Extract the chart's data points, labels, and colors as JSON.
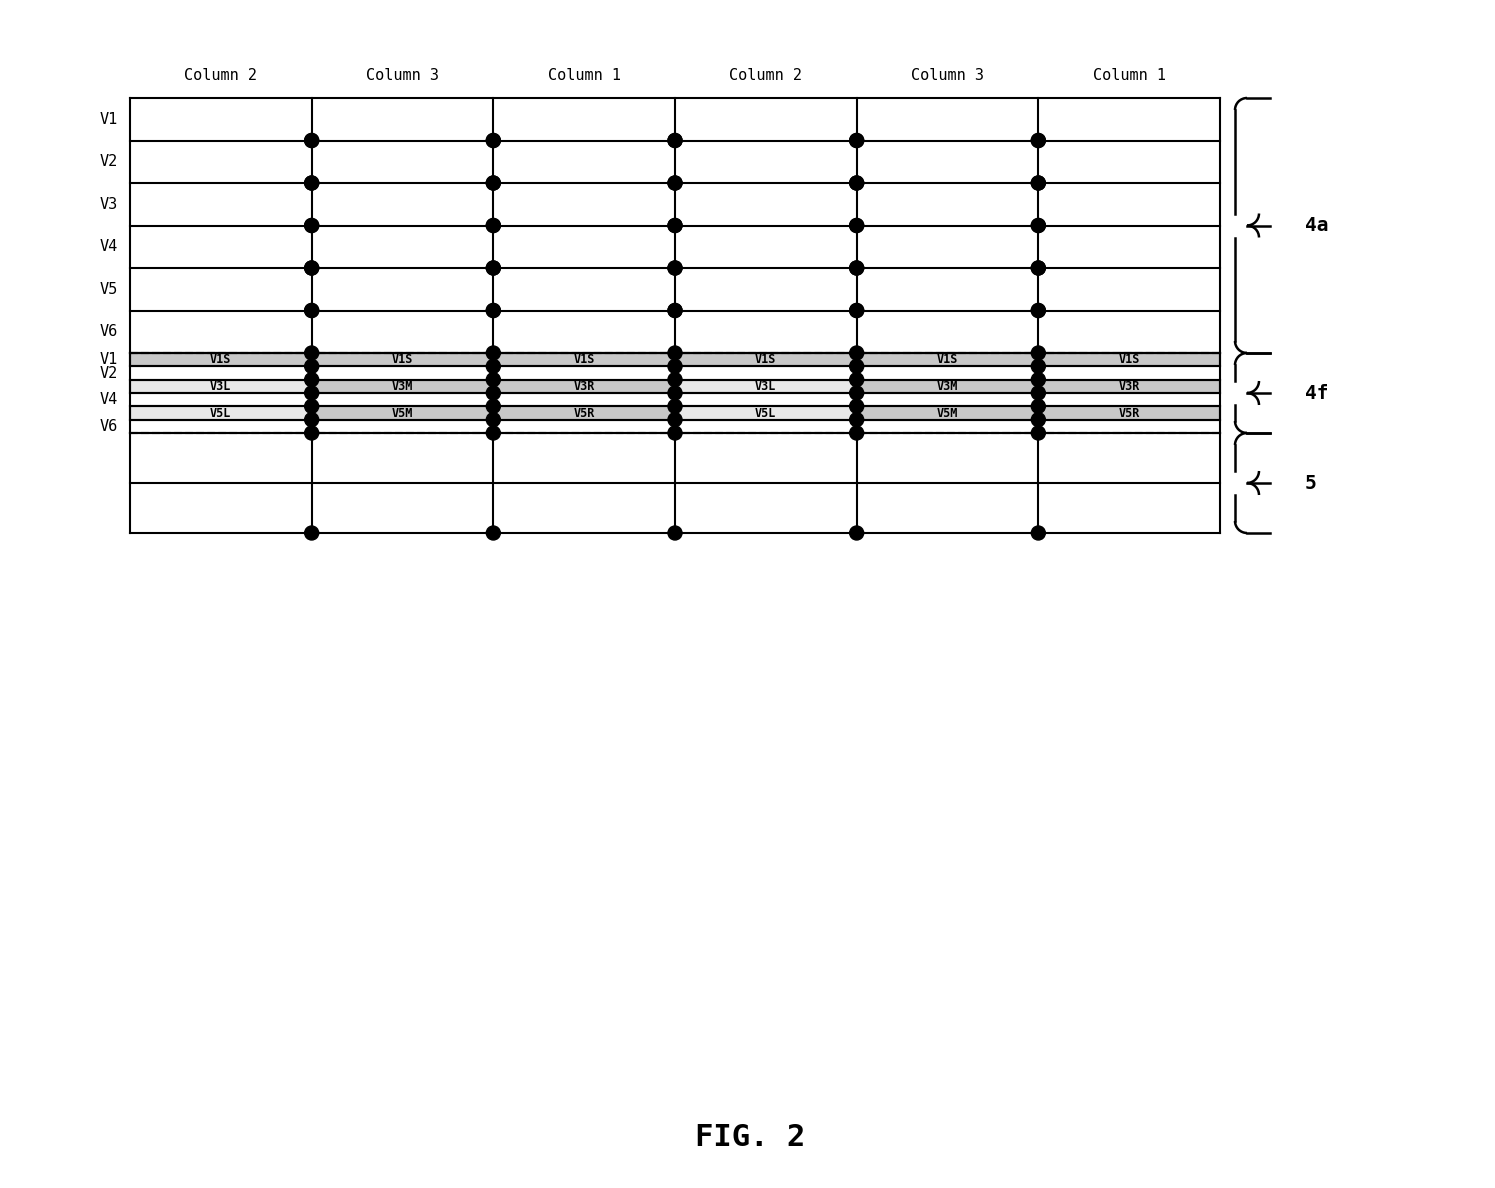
{
  "title": "FIG. 2",
  "col_labels": [
    "Column 2",
    "Column 3",
    "Column 1",
    "Column 2",
    "Column 3",
    "Column 1"
  ],
  "row_labels_top": [
    "V1",
    "V2",
    "V3",
    "V4",
    "V5",
    "V6"
  ],
  "row_labels_mid": [
    "V1",
    "V2",
    "",
    "V4",
    "",
    "V6"
  ],
  "bracket_labels": [
    "4a",
    "4f",
    "5"
  ],
  "cell_labels_v1s": [
    "V1S",
    "V1S",
    "V1S",
    "V1S",
    "V1S",
    "V1S"
  ],
  "cell_labels_v3": [
    "V3L",
    "V3M",
    "V3R",
    "V3L",
    "V3M",
    "V3R"
  ],
  "cell_labels_v5": [
    "V5L",
    "V5M",
    "V5R",
    "V5L",
    "V5M",
    "V5R"
  ],
  "bg_color": "#ffffff",
  "grid_color": "#000000",
  "shaded_color": "#c8c8c8",
  "dot_color": "#000000",
  "text_color": "#000000"
}
